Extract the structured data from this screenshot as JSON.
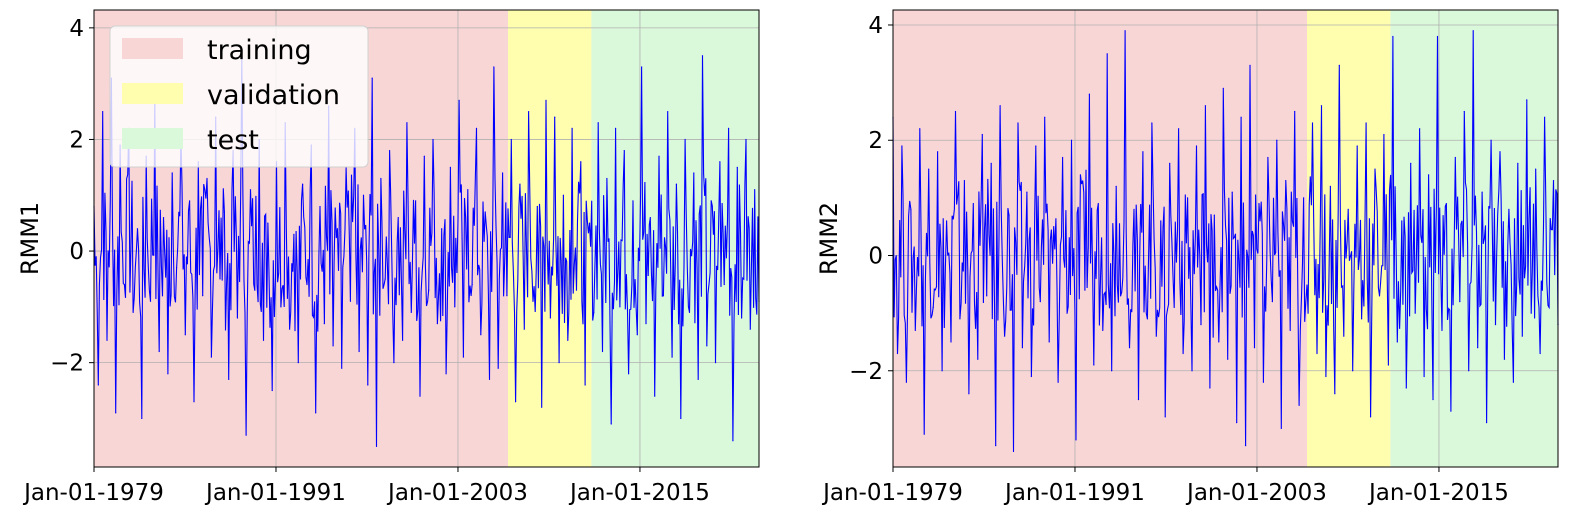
{
  "chart_data": [
    {
      "type": "line",
      "ylabel": "RMM1",
      "ylim": [
        -3.87,
        4.32
      ],
      "xlim": [
        1979.0,
        2022.85
      ],
      "yticks": [
        -2,
        0,
        2,
        4
      ],
      "ytick_labels": [
        "−2",
        "0",
        "2",
        "4"
      ],
      "xticks": [
        1979,
        1991,
        2003,
        2015
      ],
      "xtick_labels": [
        "Jan-01-1979",
        "Jan-01-1991",
        "Jan-01-2003",
        "Jan-01-2015"
      ],
      "grid": true,
      "line_color": "#0000ff",
      "spans": [
        {
          "name": "training",
          "from": 1979.0,
          "to": 2006.3,
          "color": "#f9d6d6"
        },
        {
          "name": "validation",
          "from": 2006.3,
          "to": 2011.8,
          "color": "#fefeae"
        },
        {
          "name": "test",
          "from": 2011.8,
          "to": 2022.85,
          "color": "#daf8da"
        }
      ],
      "legend": {
        "placement": "top-left",
        "entries": [
          "training",
          "validation",
          "test"
        ]
      },
      "values": [
        0.8,
        -2.4,
        2.5,
        -1.6,
        3.1,
        -2.9,
        1.9,
        -0.6,
        2.2,
        -1.1,
        0.4,
        -3.0,
        1.7,
        -0.9,
        2.8,
        -1.8,
        0.6,
        -2.2,
        1.4,
        -0.3,
        2.1,
        -1.5,
        0.9,
        -2.7,
        1.6,
        -0.8,
        1.3,
        -1.9,
        2.4,
        -0.5,
        0.7,
        -2.3,
        1.8,
        -1.2,
        3.5,
        -3.3,
        1.1,
        -0.7,
        2.0,
        -1.6,
        0.5,
        -2.5,
        1.6,
        -1.0,
        2.3,
        -1.4,
        0.3,
        -2.0,
        1.2,
        -0.6,
        1.9,
        -2.9,
        0.8,
        -1.3,
        2.6,
        -1.7,
        0.4,
        -2.1,
        1.5,
        -0.9,
        2.2,
        -1.8,
        1.0,
        -2.4,
        3.1,
        -3.5,
        1.3,
        -0.5,
        1.8,
        -2.0,
        0.6,
        -1.6,
        2.3,
        -1.1,
        0.9,
        -2.6,
        1.7,
        -0.7,
        2.0,
        -1.3,
        0.4,
        -2.2,
        1.5,
        -1.0,
        2.7,
        -1.9,
        1.1,
        -0.6,
        2.2,
        -1.5,
        0.7,
        -2.3,
        3.3,
        -2.1,
        1.4,
        -0.8,
        2.0,
        -2.7,
        1.2,
        -1.4,
        2.5,
        -0.9,
        0.8,
        -2.8,
        2.7,
        -1.2,
        2.4,
        -2.0,
        1.0,
        -1.6,
        2.2,
        -0.7,
        1.6,
        -2.4,
        0.5,
        -1.1,
        2.3,
        -1.8,
        1.3,
        -3.1,
        2.2,
        -1.0,
        1.8,
        -2.2,
        0.9,
        -1.5,
        3.3,
        -1.3,
        0.6,
        -2.6,
        1.7,
        -0.8,
        2.5,
        -1.9,
        1.2,
        -3.0,
        2.0,
        -1.1,
        1.4,
        -2.3,
        3.5,
        -1.7,
        0.9,
        -2.0,
        1.6,
        -0.6,
        2.2,
        -3.4,
        1.5,
        -1.2,
        2.0,
        -1.4,
        1.1,
        -0.9
      ]
    },
    {
      "type": "line",
      "ylabel": "RMM2",
      "ylim": [
        -3.67,
        4.26
      ],
      "xlim": [
        1979.0,
        2022.85
      ],
      "yticks": [
        -2,
        0,
        2,
        4
      ],
      "ytick_labels": [
        "−2",
        "0",
        "2",
        "4"
      ],
      "xticks": [
        1979,
        1991,
        2003,
        2015
      ],
      "xtick_labels": [
        "Jan-01-1979",
        "Jan-01-1991",
        "Jan-01-2003",
        "Jan-01-2015"
      ],
      "grid": true,
      "line_color": "#0000ff",
      "spans": [
        {
          "name": "training",
          "from": 1979.0,
          "to": 2006.3,
          "color": "#f9d6d6"
        },
        {
          "name": "validation",
          "from": 2006.3,
          "to": 2011.8,
          "color": "#fefeae"
        },
        {
          "name": "test",
          "from": 2011.8,
          "to": 2022.85,
          "color": "#daf8da"
        }
      ],
      "values": [
        2.4,
        -1.7,
        1.9,
        -2.2,
        0.8,
        -1.3,
        2.2,
        -3.1,
        1.5,
        -0.9,
        1.8,
        -2.0,
        0.6,
        -1.5,
        2.5,
        -1.1,
        1.3,
        -2.4,
        0.9,
        -1.8,
        2.1,
        -0.7,
        1.6,
        -3.3,
        2.6,
        -1.4,
        0.7,
        -3.4,
        2.3,
        -1.6,
        1.1,
        -2.1,
        1.9,
        -0.8,
        2.4,
        -1.5,
        0.5,
        -2.2,
        1.7,
        -1.0,
        2.0,
        -3.2,
        1.4,
        -0.6,
        2.8,
        -1.9,
        0.9,
        -1.3,
        3.5,
        -2.0,
        1.2,
        -0.7,
        3.9,
        -1.6,
        0.8,
        -2.5,
        1.8,
        -1.1,
        2.3,
        -1.4,
        0.6,
        -2.8,
        1.6,
        -0.9,
        2.2,
        -1.7,
        1.0,
        -2.0,
        1.9,
        -1.2,
        2.6,
        -2.3,
        0.7,
        -1.5,
        2.9,
        -1.8,
        1.1,
        -2.9,
        2.4,
        -3.3,
        3.3,
        -1.6,
        0.9,
        -2.2,
        1.7,
        -0.8,
        2.0,
        -3.0,
        1.3,
        -1.3,
        2.5,
        -2.6,
        1.0,
        -1.0,
        2.3,
        -1.7,
        2.6,
        -2.1,
        1.2,
        -2.4,
        3.3,
        -1.4,
        0.8,
        -2.0,
        1.9,
        -1.1,
        2.3,
        -2.8,
        1.5,
        -0.7,
        2.1,
        -1.9,
        3.8,
        -1.5,
        0.6,
        -2.3,
        1.6,
        -1.0,
        2.2,
        -2.1,
        1.4,
        -2.5,
        3.8,
        -1.3,
        0.9,
        -2.7,
        1.7,
        -0.8,
        2.5,
        -2.0,
        3.9,
        -1.6,
        1.1,
        -2.9,
        2.0,
        -1.2,
        1.8,
        -1.8,
        0.8,
        -2.2,
        1.6,
        -1.4,
        2.7,
        -1.0,
        1.5,
        -1.7,
        2.4,
        -0.9,
        1.3,
        -1.2
      ]
    }
  ]
}
